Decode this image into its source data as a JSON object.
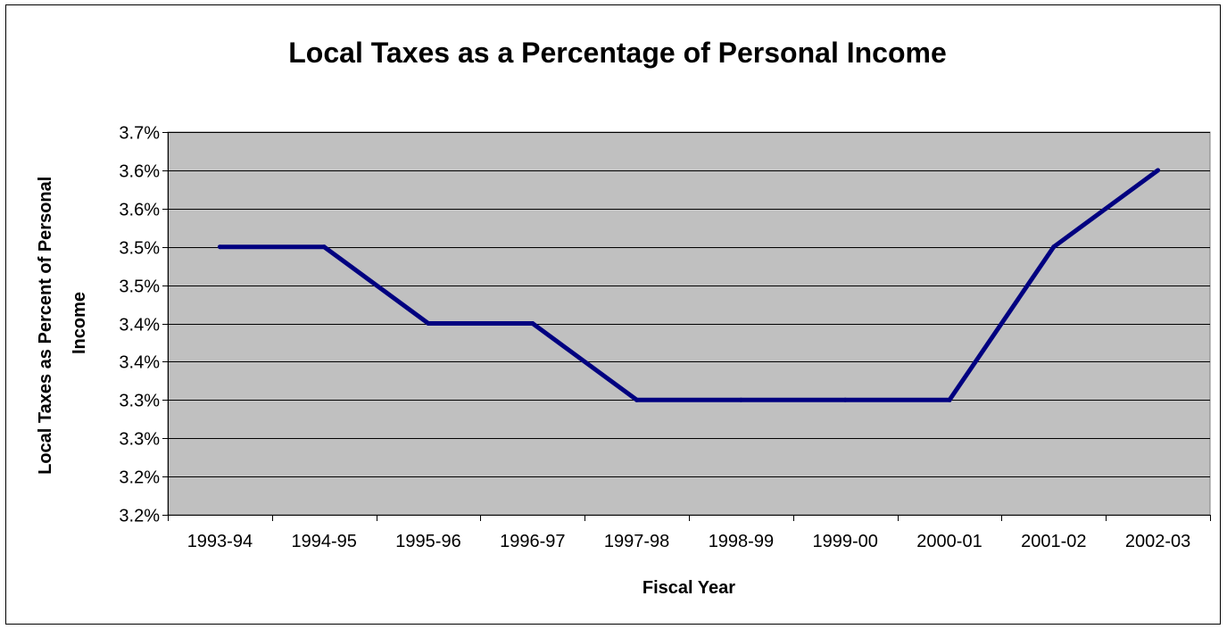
{
  "chart_data": {
    "type": "line",
    "title": "Local Taxes as a Percentage of Personal Income",
    "xlabel": "Fiscal Year",
    "ylabel": "Local Taxes as Percent of Personal Income",
    "ylabel_lines": [
      "Local Taxes as Percent of Personal",
      "Income"
    ],
    "categories": [
      "1993-94",
      "1994-95",
      "1995-96",
      "1996-97",
      "1997-98",
      "1998-99",
      "1999-00",
      "2000-01",
      "2001-02",
      "2002-03"
    ],
    "series": [
      {
        "values": [
          3.5,
          3.5,
          3.4,
          3.4,
          3.3,
          3.3,
          3.3,
          3.3,
          3.5,
          3.6
        ],
        "color": "#000080"
      }
    ],
    "ylim": [
      3.15,
      3.65
    ],
    "y_ticks": [
      3.15,
      3.2,
      3.25,
      3.3,
      3.35,
      3.4,
      3.45,
      3.5,
      3.55,
      3.6,
      3.65
    ],
    "y_tick_labels": [
      "3.2%",
      "3.2%",
      "3.3%",
      "3.3%",
      "3.4%",
      "3.4%",
      "3.5%",
      "3.5%",
      "3.6%",
      "3.6%",
      "3.7%"
    ],
    "grid": true,
    "plot_background": "#C0C0C0",
    "legend": "none"
  }
}
